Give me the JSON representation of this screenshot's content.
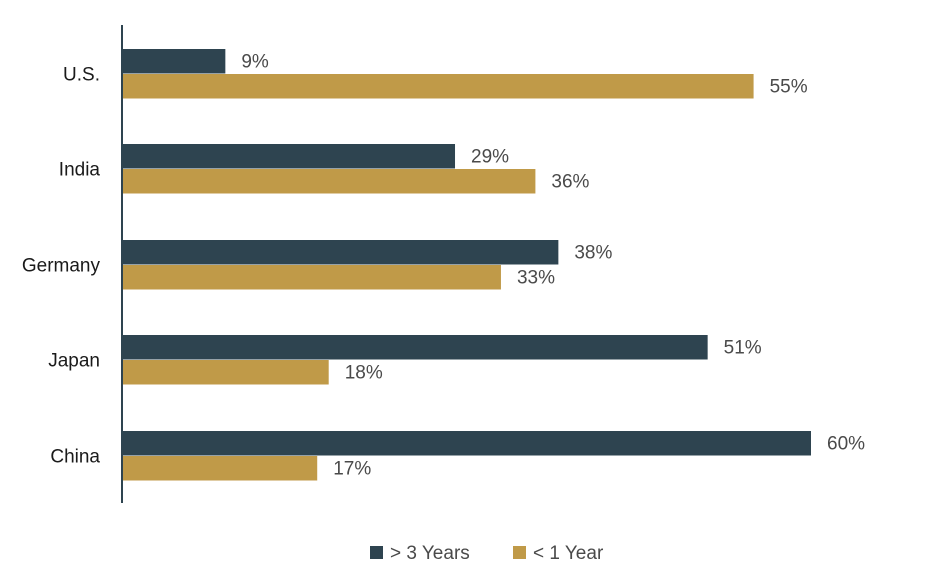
{
  "chart_data": {
    "type": "bar",
    "orientation": "horizontal",
    "categories": [
      "U.S.",
      "India",
      "Germany",
      "Japan",
      "China"
    ],
    "series": [
      {
        "name": "> 3 Years",
        "color": "#2e4450",
        "values": [
          9,
          29,
          38,
          51,
          60
        ],
        "labels": [
          "9%",
          "29%",
          "38%",
          "51%",
          "60%"
        ]
      },
      {
        "name": "< 1 Year",
        "color": "#c09a48",
        "values": [
          55,
          36,
          33,
          18,
          17
        ],
        "labels": [
          "55%",
          "36%",
          "33%",
          "18%",
          "17%"
        ]
      }
    ],
    "value_unit": "%",
    "xlim": [
      0,
      60
    ],
    "grid": false,
    "legend_position": "bottom-center",
    "title": "",
    "xlabel": "",
    "ylabel": ""
  }
}
